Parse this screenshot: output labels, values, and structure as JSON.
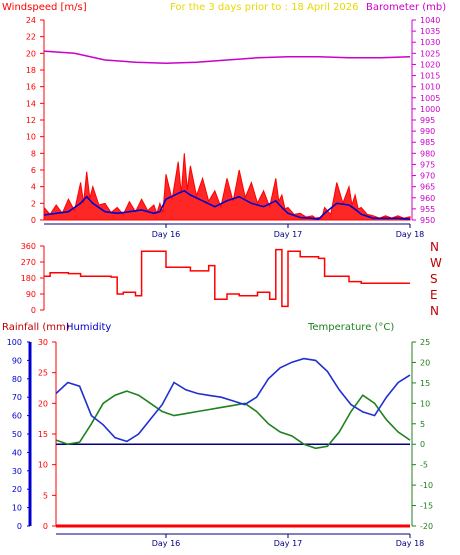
{
  "header": {
    "windspeed_label": "Windspeed [m/s]",
    "subtitle": "For the 3 days prior to : 18 April 2026",
    "barometer_label": "Barometer (mb)"
  },
  "lower_header": {
    "rainfall_label": "Rainfall (mm)",
    "humidity_label": "Humidity",
    "temperature_label": "Temperature (°C)"
  },
  "colors": {
    "windspeed": "#ff0000",
    "wind_avg": "#0000cc",
    "barometer": "#cc00cc",
    "direction": "#ff0000",
    "rainfall": "#ff0000",
    "humidity": "#2030d0",
    "temperature": "#208020",
    "subtitle": "#e8d800",
    "axis_left": "#ff0000",
    "axis_right_baro": "#cc00cc",
    "axis_right_temp": "#208020",
    "axis_left_humidity": "#0000cc"
  },
  "chart_data": [
    {
      "type": "area",
      "xlabel": "",
      "ylabel": "Windspeed [m/s]",
      "y2label": "Barometer (mb)",
      "ylim": [
        0,
        24
      ],
      "y2lim": [
        950,
        1040
      ],
      "y_ticks": [
        "0",
        "2",
        "4",
        "6",
        "8",
        "10",
        "12",
        "14",
        "16",
        "18",
        "20",
        "22",
        "24"
      ],
      "y2_ticks": [
        "950",
        "955",
        "960",
        "965",
        "970",
        "975",
        "980",
        "985",
        "990",
        "995",
        "1000",
        "1005",
        "1010",
        "1015",
        "1020",
        "1025",
        "1030",
        "1035",
        "1040"
      ],
      "x_ticks": [
        "Day 16",
        "Day 17",
        "Day 18"
      ],
      "xlim": [
        15,
        18
      ],
      "series": [
        {
          "name": "Barometer (mb)",
          "x": [
            15.0,
            15.25,
            15.5,
            15.75,
            16.0,
            16.25,
            16.5,
            16.75,
            17.0,
            17.25,
            17.5,
            17.75,
            18.0
          ],
          "values": [
            1026,
            1025,
            1022,
            1021,
            1020.5,
            1021,
            1022,
            1023,
            1023.5,
            1023.5,
            1023,
            1023,
            1023.5
          ]
        },
        {
          "name": "Windspeed gust",
          "x": [
            15.0,
            15.1,
            15.2,
            15.3,
            15.35,
            15.4,
            15.5,
            15.6,
            15.7,
            15.8,
            15.9,
            15.95,
            16.0,
            16.1,
            16.15,
            16.2,
            16.3,
            16.4,
            16.5,
            16.6,
            16.7,
            16.8,
            16.9,
            16.95,
            17.0,
            17.1,
            17.2,
            17.25,
            17.3,
            17.4,
            17.5,
            17.55,
            17.6,
            17.7,
            17.8,
            17.9,
            18.0
          ],
          "values": [
            1.5,
            1.8,
            2.5,
            4.5,
            5.8,
            4,
            2,
            1.5,
            2.2,
            2.5,
            1.8,
            2,
            5.5,
            7,
            8,
            6.5,
            5,
            3.5,
            5,
            6,
            4.5,
            3.5,
            5,
            3,
            1.5,
            0.8,
            0.5,
            0.3,
            1.5,
            4.5,
            4,
            3,
            1.5,
            0.5,
            0.5,
            0.5,
            0.4
          ]
        },
        {
          "name": "Windspeed avg",
          "x": [
            15.0,
            15.1,
            15.2,
            15.3,
            15.35,
            15.4,
            15.5,
            15.6,
            15.7,
            15.8,
            15.9,
            15.95,
            16.0,
            16.1,
            16.15,
            16.2,
            16.3,
            16.4,
            16.5,
            16.6,
            16.7,
            16.8,
            16.9,
            16.95,
            17.0,
            17.1,
            17.2,
            17.25,
            17.3,
            17.4,
            17.5,
            17.55,
            17.6,
            17.7,
            17.8,
            17.9,
            18.0
          ],
          "values": [
            0.6,
            0.8,
            1,
            2,
            2.8,
            2,
            1,
            0.8,
            1,
            1.2,
            0.8,
            1,
            2.5,
            3.2,
            3.5,
            3,
            2.3,
            1.6,
            2.3,
            2.8,
            2,
            1.6,
            2.3,
            1.5,
            0.8,
            0.3,
            0.2,
            0.1,
            0.8,
            2,
            1.8,
            1.3,
            0.7,
            0.2,
            0.2,
            0.2,
            0.1
          ]
        }
      ]
    },
    {
      "type": "line",
      "ylabel": "",
      "ylim": [
        0,
        360
      ],
      "y_ticks": [
        "0",
        "90",
        "180",
        "270",
        "360"
      ],
      "direction_labels": [
        "N",
        "W",
        "S",
        "E",
        "N"
      ],
      "series": [
        {
          "name": "Wind direction",
          "x": [
            15.0,
            15.05,
            15.2,
            15.3,
            15.55,
            15.6,
            15.65,
            15.75,
            15.8,
            16.0,
            16.2,
            16.35,
            16.4,
            16.5,
            16.6,
            16.75,
            16.85,
            16.9,
            16.95,
            17.0,
            17.1,
            17.25,
            17.3,
            17.5,
            17.6,
            18.0
          ],
          "values": [
            190,
            210,
            205,
            190,
            185,
            90,
            100,
            80,
            330,
            240,
            220,
            250,
            60,
            90,
            80,
            100,
            60,
            340,
            20,
            330,
            300,
            290,
            190,
            160,
            150,
            150
          ]
        }
      ]
    },
    {
      "type": "line",
      "ylabel": "Rainfall (mm)",
      "y_humidity_ticks": [
        "0",
        "10",
        "20",
        "30",
        "40",
        "50",
        "60",
        "70",
        "80",
        "90",
        "100"
      ],
      "y_rain_ticks": [
        "0",
        "5",
        "10",
        "15",
        "20",
        "25",
        "30"
      ],
      "y_temp_ticks": [
        "-20",
        "-15",
        "-10",
        "-5",
        "0",
        "5",
        "10",
        "15",
        "20",
        "25"
      ],
      "ylim_humidity": [
        0,
        100
      ],
      "ylim_rain": [
        0,
        30
      ],
      "ylim_temp": [
        -20,
        25
      ],
      "x_ticks": [
        "Day 16",
        "Day 17",
        "Day 18"
      ],
      "xlim": [
        15,
        18
      ],
      "series": [
        {
          "name": "Humidity",
          "x": [
            15.0,
            15.1,
            15.2,
            15.3,
            15.4,
            15.5,
            15.6,
            15.7,
            15.8,
            15.9,
            16.0,
            16.1,
            16.2,
            16.3,
            16.4,
            16.5,
            16.6,
            16.7,
            16.8,
            16.9,
            17.0,
            17.1,
            17.2,
            17.3,
            17.4,
            17.5,
            17.6,
            17.7,
            17.8,
            17.9,
            18.0
          ],
          "values": [
            72,
            78,
            76,
            60,
            55,
            48,
            46,
            50,
            58,
            66,
            78,
            74,
            72,
            71,
            70,
            68,
            66,
            70,
            80,
            86,
            89,
            91,
            90,
            84,
            74,
            66,
            62,
            60,
            70,
            78,
            82
          ]
        },
        {
          "name": "Temperature",
          "x": [
            15.0,
            15.1,
            15.2,
            15.3,
            15.4,
            15.5,
            15.6,
            15.7,
            15.8,
            15.9,
            16.0,
            16.1,
            16.2,
            16.3,
            16.4,
            16.5,
            16.6,
            16.7,
            16.8,
            16.9,
            17.0,
            17.1,
            17.2,
            17.3,
            17.4,
            17.5,
            17.6,
            17.7,
            17.8,
            17.9,
            18.0
          ],
          "values": [
            1,
            0,
            0.5,
            5,
            10,
            12,
            13,
            12,
            10,
            8,
            7,
            7.5,
            8,
            8.5,
            9,
            9.5,
            10,
            8,
            5,
            3,
            2,
            0,
            -1,
            -0.5,
            3,
            8,
            12,
            10,
            6,
            3,
            1
          ]
        },
        {
          "name": "Rainfall",
          "x": [
            15.0,
            18.0
          ],
          "values": [
            0,
            0
          ]
        }
      ]
    }
  ]
}
